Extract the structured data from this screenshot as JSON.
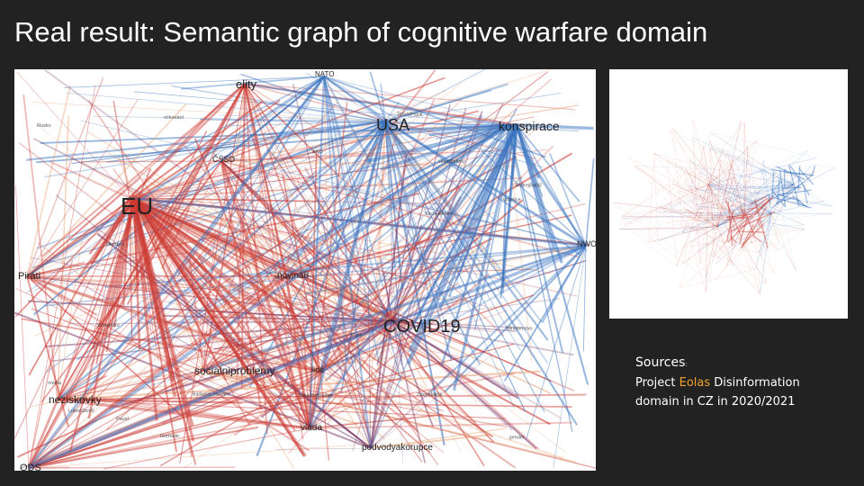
{
  "slide": {
    "title": "Real result: Semantic graph of cognitive warfare domain"
  },
  "graph": {
    "colors": {
      "red": "#cc3a32",
      "blue": "#3a74c0",
      "purple": "#7a3a6a",
      "orange": "#e8a070"
    },
    "major_nodes": [
      {
        "key": "eu",
        "label": "EU"
      },
      {
        "key": "covid",
        "label": "COVID19"
      },
      {
        "key": "usa",
        "label": "USA"
      },
      {
        "key": "konspirace",
        "label": "konspirace"
      },
      {
        "key": "elity",
        "label": "elity"
      },
      {
        "key": "socialni",
        "label": "socialniproblemy"
      },
      {
        "key": "neziskovky",
        "label": "neziskovky"
      },
      {
        "key": "novinari",
        "label": "novináři"
      },
      {
        "key": "vlada",
        "label": "vláda"
      },
      {
        "key": "podvody",
        "label": "podvodyakorupce"
      },
      {
        "key": "lide",
        "label": "lidé"
      },
      {
        "key": "pirati",
        "label": "Piráti"
      },
      {
        "key": "cssd",
        "label": "ČSSD"
      },
      {
        "key": "nato",
        "label": "NATO"
      },
      {
        "key": "nwo",
        "label": "NWO"
      },
      {
        "key": "ods",
        "label": "ODS"
      }
    ],
    "minor_nodes": [
      "VáclavHavel",
      "Vrbetice",
      "média",
      "ANO",
      "AndrejBabiš",
      "BillGates",
      "Rusko",
      "Putin",
      "TomášHalík",
      "Slovensko",
      "Ukrajina",
      "očkování",
      "HnutíZelený",
      "LubošZbořil",
      "ZdeněkHřib",
      "LukášSchreiber",
      "BarbaraLeemann",
      "Pavel",
      "Grenade",
      "Ministerstvo",
      "gender"
    ]
  },
  "sources": {
    "heading": "Sources",
    "heading_suffix": ":",
    "line1_prefix": "Project ",
    "line1_accent": "Eolas",
    "line1_suffix": " Disinformation",
    "line2": "domain in CZ in 2020/2021"
  }
}
